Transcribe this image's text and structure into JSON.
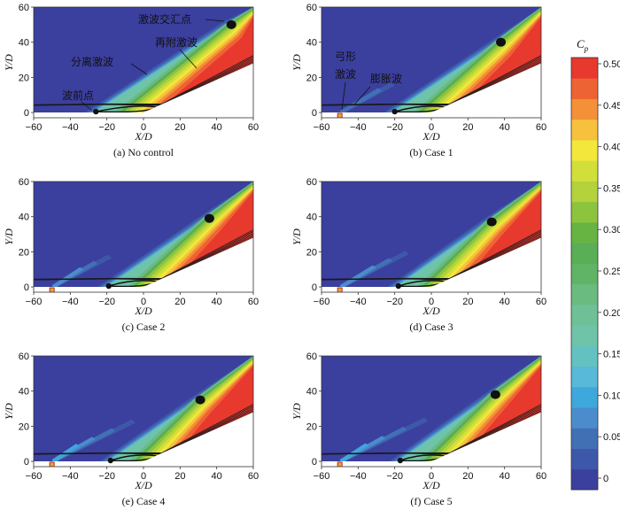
{
  "chart_data": {
    "type": "heatmap",
    "figure": "Pressure coefficient Cp contour comparison",
    "colorbar": {
      "title": "C",
      "title_sub": "p",
      "ticks": [
        "0.50",
        "0.45",
        "0.40",
        "0.35",
        "0.30",
        "0.25",
        "0.20",
        "0.15",
        "0.10",
        "0.05",
        "0"
      ],
      "levels": [
        0,
        0.025,
        0.05,
        0.075,
        0.1,
        0.125,
        0.15,
        0.175,
        0.2,
        0.225,
        0.25,
        0.275,
        0.3,
        0.325,
        0.35,
        0.375,
        0.4,
        0.425,
        0.45,
        0.475,
        0.5
      ],
      "colors": [
        "#3b3f9e",
        "#3d58a8",
        "#4270b5",
        "#4b8ccc",
        "#3ea8dc",
        "#58b9d8",
        "#63c2c0",
        "#6ec3a8",
        "#6fc096",
        "#6abb80",
        "#5fb466",
        "#5aae55",
        "#67b442",
        "#8dc43e",
        "#b3d23c",
        "#d2df3a",
        "#f3e73b",
        "#f6c13c",
        "#f49038",
        "#ee6333",
        "#e8392e"
      ]
    },
    "xaxis": {
      "label": "X/D",
      "min": -60,
      "max": 60,
      "ticks": [
        "−60",
        "−40",
        "−20",
        "0",
        "20",
        "40",
        "60"
      ],
      "tick_values": [
        -60,
        -40,
        -20,
        0,
        20,
        40,
        60
      ]
    },
    "yaxis": {
      "label": "Y/D",
      "min": -3,
      "max": 60,
      "ticks": [
        "0",
        "20",
        "40",
        "60"
      ],
      "tick_values": [
        0,
        20,
        40,
        60
      ]
    },
    "panels": [
      {
        "caption": "(a) No control",
        "has_jet": false,
        "separation_x": -26,
        "intersection": {
          "x": 48,
          "y": 50
        },
        "sep_shock_strength": 0.18,
        "jet_shock_strength": 0.0
      },
      {
        "caption": "(b) Case 1",
        "has_jet": true,
        "separation_x": -20,
        "intersection": {
          "x": 38,
          "y": 40
        },
        "sep_shock_strength": 0.12,
        "jet_shock_strength": 0.05
      },
      {
        "caption": "(c) Case 2",
        "has_jet": true,
        "separation_x": -19,
        "intersection": {
          "x": 36,
          "y": 39
        },
        "sep_shock_strength": 0.12,
        "jet_shock_strength": 0.06
      },
      {
        "caption": "(d) Case 3",
        "has_jet": true,
        "separation_x": -18,
        "intersection": {
          "x": 33,
          "y": 37
        },
        "sep_shock_strength": 0.12,
        "jet_shock_strength": 0.08
      },
      {
        "caption": "(e) Case 4",
        "has_jet": true,
        "separation_x": -18,
        "intersection": {
          "x": 31,
          "y": 35
        },
        "sep_shock_strength": 0.12,
        "jet_shock_strength": 0.11
      },
      {
        "caption": "(f) Case 5",
        "has_jet": true,
        "separation_x": -17,
        "intersection": {
          "x": 35,
          "y": 38
        },
        "sep_shock_strength": 0.12,
        "jet_shock_strength": 0.12
      }
    ],
    "annotations": {
      "panel_a": {
        "intersection_point": "激波交汇点",
        "reattach_shock": "再附激波",
        "separation_shock": "分离激波",
        "shock_front_point": "波前点"
      },
      "panel_b": {
        "bow_shock_line1": "弓形",
        "bow_shock_line2": "激波",
        "expansion_wave": "膨胀波"
      }
    }
  }
}
